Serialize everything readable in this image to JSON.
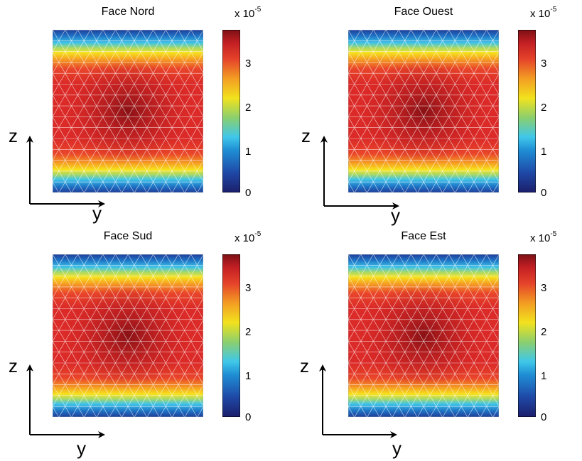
{
  "colorbar": {
    "multiplier": "x 10",
    "exponent": "-5",
    "ticks": [
      "3",
      "2",
      "1",
      "0"
    ]
  },
  "axes": {
    "vertical_label": "z",
    "horizontal_label": "y"
  },
  "panels": [
    {
      "title": "Face Nord"
    },
    {
      "title": "Face Ouest"
    },
    {
      "title": "Face Sud"
    },
    {
      "title": "Face Est"
    }
  ],
  "chart_data": [
    {
      "type": "heatmap",
      "title": "Face Nord",
      "xlabel": "y",
      "ylabel": "z",
      "colorbar_range": [
        0,
        3.7e-05
      ],
      "colorbar_ticks": [
        0,
        1e-05,
        2e-05,
        3e-05
      ],
      "colormap": "jet",
      "peak_value": 3.7e-05,
      "peak_location": "center",
      "edge_value_top_bottom": 0,
      "mesh": "triangular (white edges)"
    },
    {
      "type": "heatmap",
      "title": "Face Ouest",
      "xlabel": "y",
      "ylabel": "z",
      "colorbar_range": [
        0,
        3.7e-05
      ],
      "colorbar_ticks": [
        0,
        1e-05,
        2e-05,
        3e-05
      ],
      "colormap": "jet",
      "peak_value": 3.7e-05,
      "peak_location": "center",
      "edge_value_top_bottom": 0,
      "mesh": "triangular (white edges)"
    },
    {
      "type": "heatmap",
      "title": "Face Sud",
      "xlabel": "y",
      "ylabel": "z",
      "colorbar_range": [
        0,
        3.6e-05
      ],
      "colorbar_ticks": [
        0,
        1e-05,
        2e-05,
        3e-05
      ],
      "colormap": "jet",
      "peak_value": 3.6e-05,
      "peak_location": "center",
      "edge_value_top_bottom": 0,
      "mesh": "triangular (white edges)"
    },
    {
      "type": "heatmap",
      "title": "Face Est",
      "xlabel": "y",
      "ylabel": "z",
      "colorbar_range": [
        0,
        3.7e-05
      ],
      "colorbar_ticks": [
        0,
        1e-05,
        2e-05,
        3e-05
      ],
      "colormap": "jet",
      "peak_value": 3.7e-05,
      "peak_location": "center",
      "edge_value_top_bottom": 0,
      "mesh": "triangular (white edges)"
    }
  ]
}
